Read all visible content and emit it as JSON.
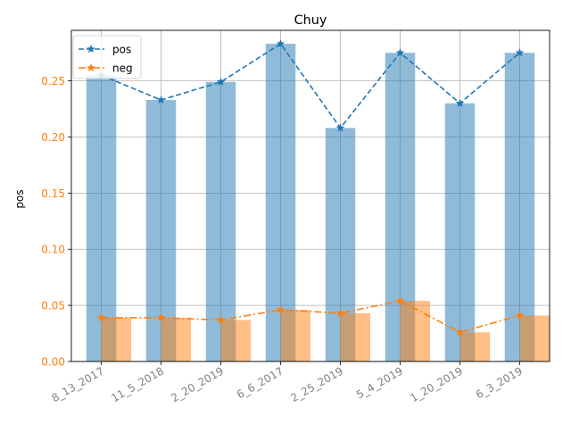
{
  "chart_data": {
    "type": "bar",
    "title": "Chuy",
    "xlabel": "",
    "ylabel": "pos",
    "categories": [
      "8_13_2017",
      "11_5_2018",
      "2_20_2019",
      "6_6_2017",
      "2_25_2019",
      "5_4_2019",
      "1_20_2019",
      "6_3_2019"
    ],
    "ylim": [
      0,
      0.295
    ],
    "yticks": [
      "0.00",
      "0.05",
      "0.10",
      "0.15",
      "0.20",
      "0.25"
    ],
    "grid": true,
    "legend_position": "top-left",
    "bar_series": [
      {
        "values": [
          0.255,
          0.233,
          0.249,
          0.283,
          0.208,
          0.275,
          0.23,
          0.275
        ],
        "color": "#1f77b4",
        "alpha": 0.5
      },
      {
        "values": [
          0.039,
          0.039,
          0.037,
          0.046,
          0.043,
          0.054,
          0.026,
          0.041
        ],
        "color": "#ff7f0e",
        "alpha": 0.5
      }
    ],
    "line_series": [
      {
        "name": "pos",
        "values": [
          0.255,
          0.233,
          0.249,
          0.283,
          0.208,
          0.275,
          0.23,
          0.275
        ],
        "color": "#1f77b4",
        "linestyle": "dashed",
        "marker": "star"
      },
      {
        "name": "neg",
        "values": [
          0.039,
          0.039,
          0.037,
          0.046,
          0.043,
          0.054,
          0.026,
          0.041
        ],
        "color": "#ff7f0e",
        "linestyle": "dashdot",
        "marker": "star"
      }
    ],
    "tick_color_y": "#ff7f0e",
    "tick_color_x": "#808080"
  }
}
